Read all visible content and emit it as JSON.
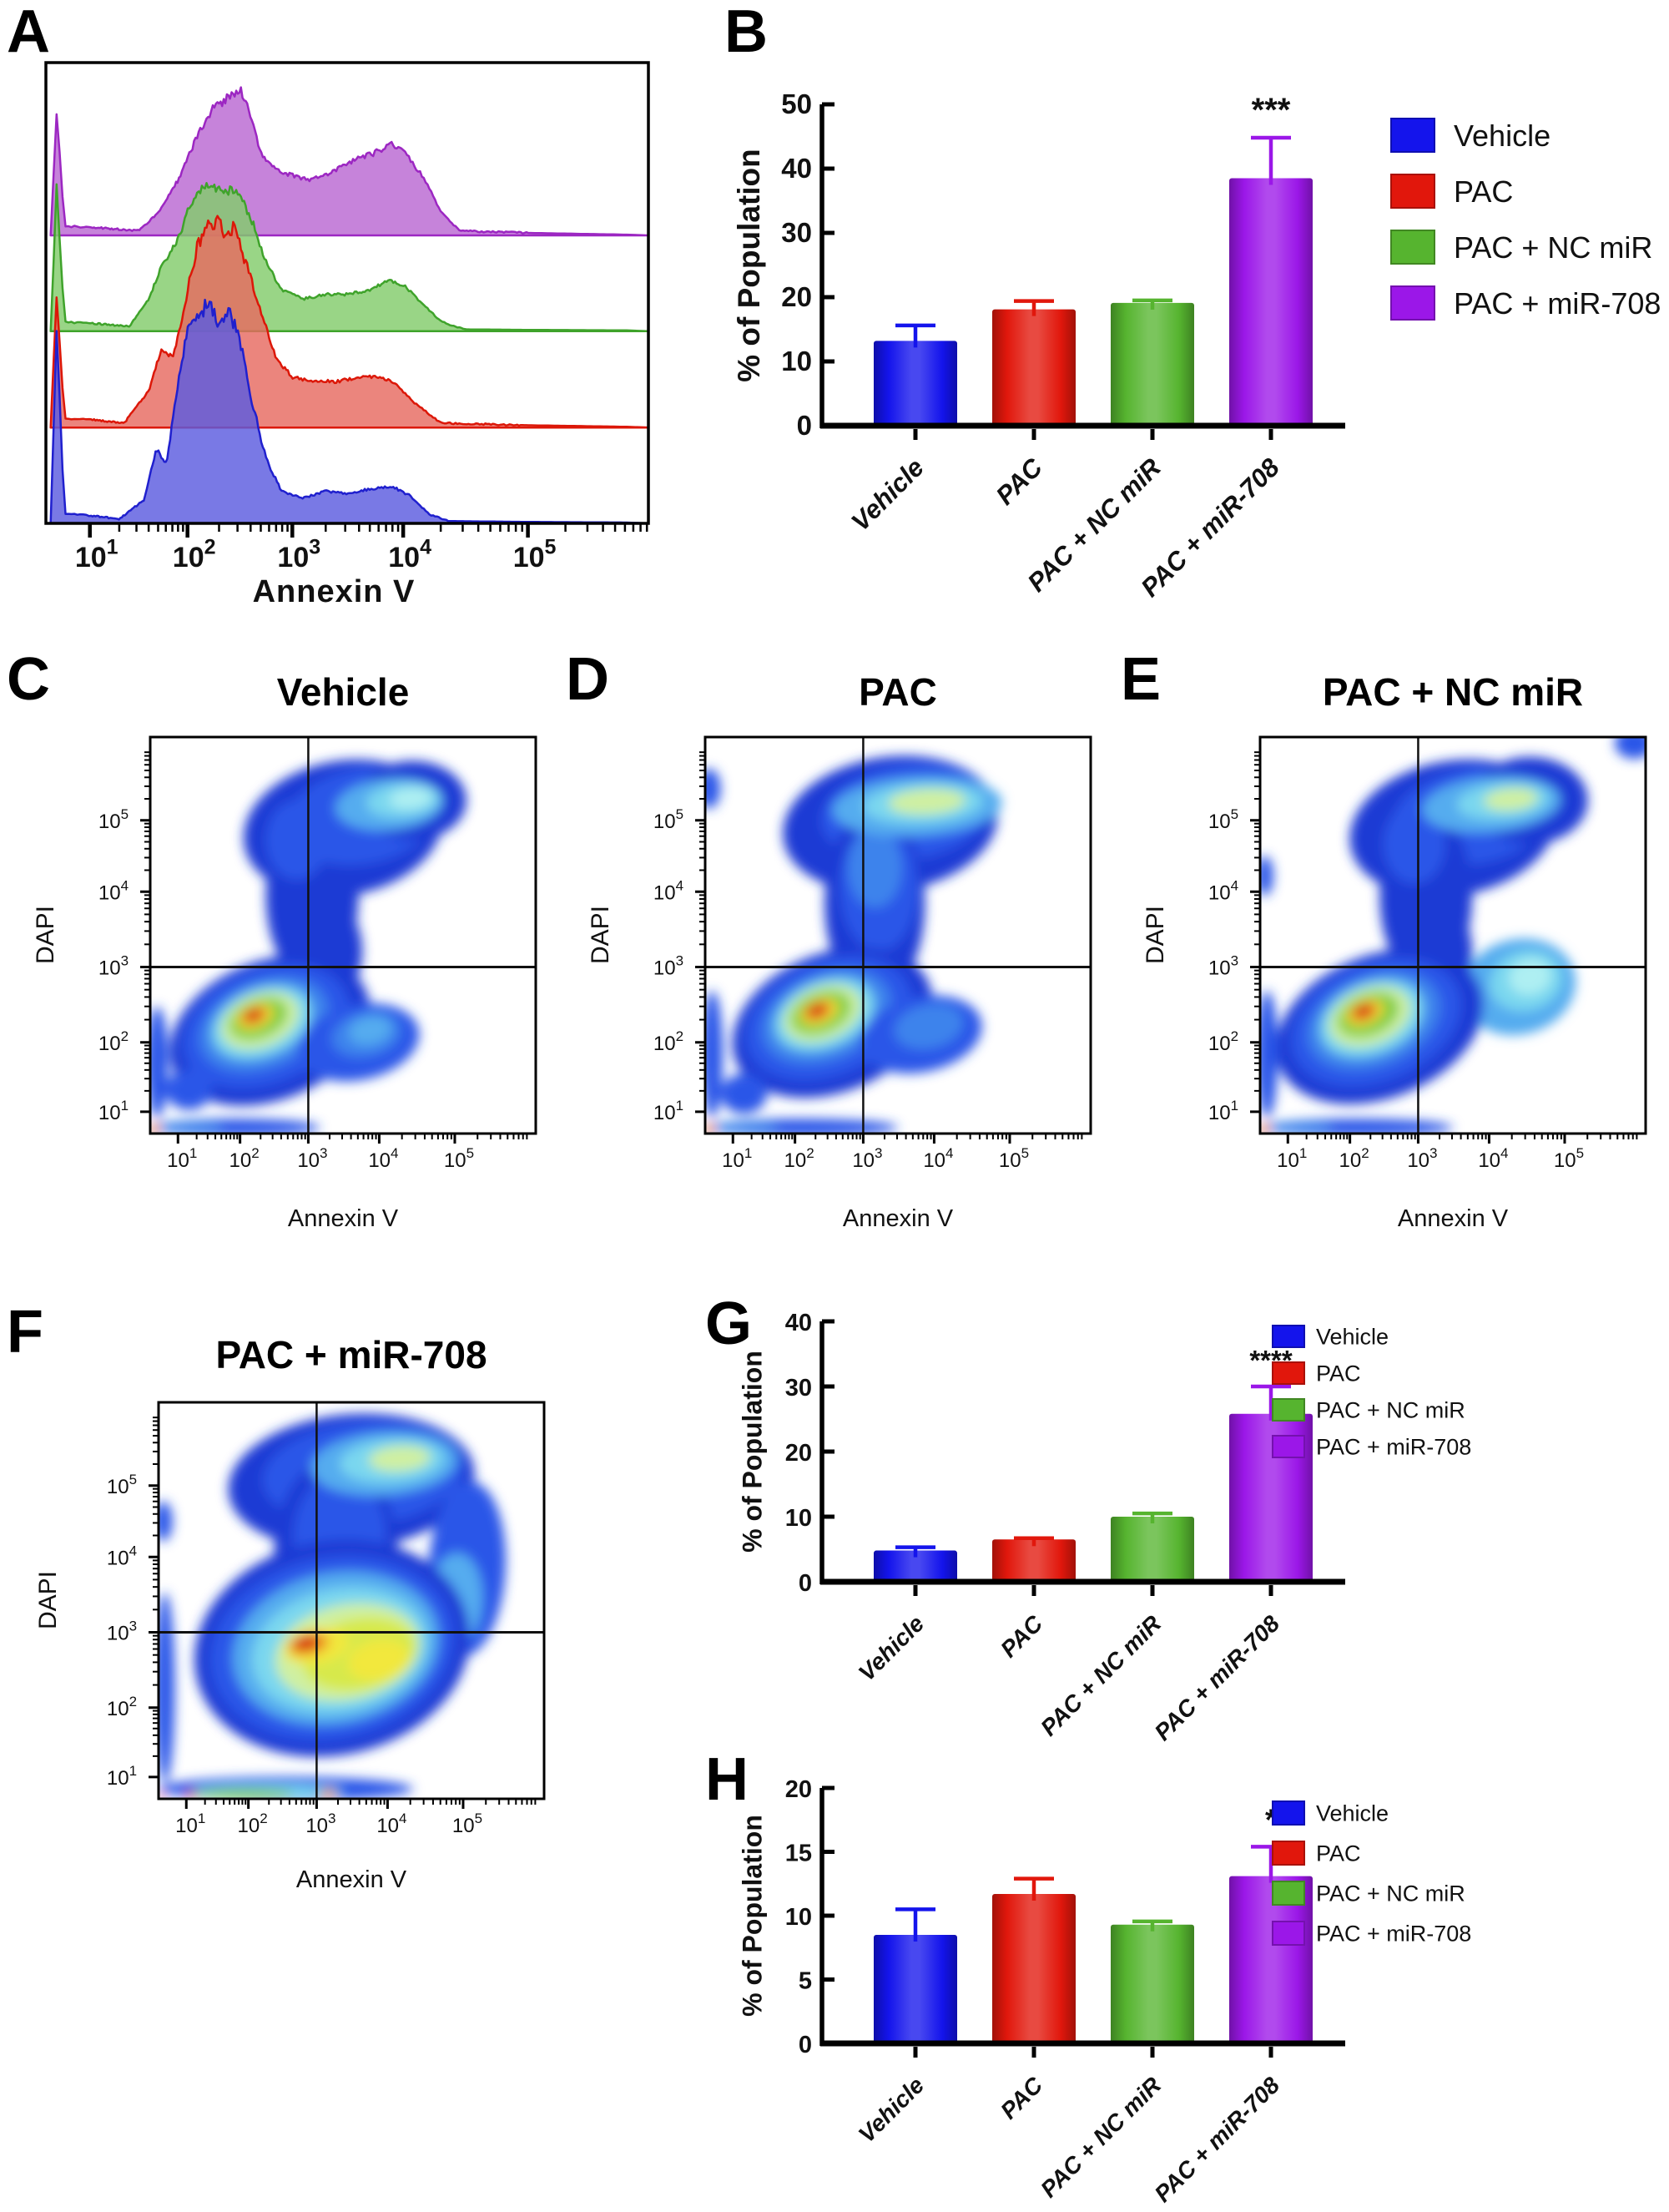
{
  "figure": {
    "legend_items": [
      {
        "label": "Vehicle",
        "color": "#1414EC"
      },
      {
        "label": "PAC",
        "color": "#E1170C"
      },
      {
        "label": "PAC + NC miR",
        "color": "#56B42F"
      },
      {
        "label": "PAC + miR-708",
        "color": "#9B17E8"
      }
    ]
  },
  "axes": {
    "log_base": "10",
    "log_exponents": [
      "1",
      "2",
      "3",
      "4",
      "5"
    ]
  },
  "panels": {
    "A": {
      "label": "A",
      "xlabel": "Annexin V"
    },
    "B": {
      "label": "B",
      "ylabel": "% of Population"
    },
    "C": {
      "label": "C",
      "title": "Vehicle",
      "xlabel": "Annexin V",
      "ylabel": "DAPI"
    },
    "D": {
      "label": "D",
      "title": "PAC",
      "xlabel": "Annexin V",
      "ylabel": "DAPI"
    },
    "E": {
      "label": "E",
      "title": "PAC + NC miR",
      "xlabel": "Annexin V",
      "ylabel": "DAPI"
    },
    "F": {
      "label": "F",
      "title": "PAC + miR-708",
      "xlabel": "Annexin V",
      "ylabel": "DAPI"
    },
    "G": {
      "label": "G",
      "ylabel": "% of Population"
    },
    "H": {
      "label": "H",
      "ylabel": "% of Population"
    }
  },
  "chart_data": [
    {
      "id": "A",
      "type": "area",
      "subtype": "flow-histogram-overlay",
      "xlabel": "Annexin V",
      "x_scale": "log10",
      "x_range": [
        10,
        100000
      ],
      "legend_position": "none",
      "grid": false,
      "note": "Four stacked (ridgeline-offset) Annexin V fluorescence histograms; heights are fractions of panel height, x in log10 units",
      "series": [
        {
          "name": "Vehicle",
          "fill": "#5B5BDF",
          "stroke": "#2020CE",
          "baseline_offset": 0.0,
          "profile": [
            [
              0.8,
              0
            ],
            [
              0.83,
              0.42
            ],
            [
              0.87,
              0.02
            ],
            [
              1.3,
              0.01
            ],
            [
              1.55,
              0.05
            ],
            [
              1.68,
              0.16
            ],
            [
              1.78,
              0.13
            ],
            [
              1.9,
              0.3
            ],
            [
              2.0,
              0.42
            ],
            [
              2.1,
              0.45
            ],
            [
              2.2,
              0.48
            ],
            [
              2.3,
              0.43
            ],
            [
              2.4,
              0.46
            ],
            [
              2.5,
              0.4
            ],
            [
              2.6,
              0.28
            ],
            [
              2.75,
              0.14
            ],
            [
              2.9,
              0.07
            ],
            [
              3.1,
              0.055
            ],
            [
              3.3,
              0.07
            ],
            [
              3.5,
              0.065
            ],
            [
              3.7,
              0.075
            ],
            [
              3.9,
              0.08
            ],
            [
              4.05,
              0.06
            ],
            [
              4.2,
              0.02
            ],
            [
              4.35,
              0.005
            ],
            [
              5.4,
              0.002
            ]
          ]
        },
        {
          "name": "PAC",
          "fill": "#E76A60",
          "stroke": "#DC1708",
          "baseline_offset": 0.208,
          "profile": [
            [
              0.8,
              0
            ],
            [
              0.83,
              0.29
            ],
            [
              0.87,
              0.02
            ],
            [
              1.35,
              0.01
            ],
            [
              1.6,
              0.08
            ],
            [
              1.73,
              0.17
            ],
            [
              1.85,
              0.15
            ],
            [
              2.0,
              0.3
            ],
            [
              2.1,
              0.4
            ],
            [
              2.2,
              0.44
            ],
            [
              2.3,
              0.45
            ],
            [
              2.37,
              0.41
            ],
            [
              2.45,
              0.44
            ],
            [
              2.55,
              0.36
            ],
            [
              2.7,
              0.25
            ],
            [
              2.85,
              0.15
            ],
            [
              3.0,
              0.11
            ],
            [
              3.2,
              0.1
            ],
            [
              3.4,
              0.1
            ],
            [
              3.6,
              0.11
            ],
            [
              3.8,
              0.11
            ],
            [
              3.95,
              0.09
            ],
            [
              4.1,
              0.05
            ],
            [
              4.3,
              0.01
            ],
            [
              5.4,
              0.002
            ]
          ]
        },
        {
          "name": "PAC + NC miR",
          "fill": "#83CC6B",
          "stroke": "#3FA32B",
          "baseline_offset": 0.417,
          "profile": [
            [
              0.8,
              0
            ],
            [
              0.83,
              0.31
            ],
            [
              0.87,
              0.02
            ],
            [
              1.4,
              0.01
            ],
            [
              1.6,
              0.07
            ],
            [
              1.73,
              0.14
            ],
            [
              1.9,
              0.2
            ],
            [
              2.0,
              0.26
            ],
            [
              2.1,
              0.3
            ],
            [
              2.2,
              0.32
            ],
            [
              2.35,
              0.3
            ],
            [
              2.45,
              0.31
            ],
            [
              2.6,
              0.25
            ],
            [
              2.75,
              0.15
            ],
            [
              2.9,
              0.09
            ],
            [
              3.1,
              0.07
            ],
            [
              3.3,
              0.08
            ],
            [
              3.5,
              0.08
            ],
            [
              3.7,
              0.09
            ],
            [
              3.85,
              0.11
            ],
            [
              4.0,
              0.1
            ],
            [
              4.15,
              0.06
            ],
            [
              4.3,
              0.02
            ],
            [
              4.5,
              0.004
            ],
            [
              5.4,
              0.002
            ]
          ]
        },
        {
          "name": "PAC + miR-708",
          "fill": "#BA68D2",
          "stroke": "#9C27C2",
          "baseline_offset": 0.625,
          "profile": [
            [
              0.8,
              0
            ],
            [
              0.83,
              0.27
            ],
            [
              0.87,
              0.02
            ],
            [
              1.5,
              0.01
            ],
            [
              1.7,
              0.05
            ],
            [
              1.9,
              0.12
            ],
            [
              2.1,
              0.22
            ],
            [
              2.25,
              0.28
            ],
            [
              2.4,
              0.3
            ],
            [
              2.5,
              0.32
            ],
            [
              2.6,
              0.26
            ],
            [
              2.7,
              0.18
            ],
            [
              2.85,
              0.14
            ],
            [
              3.0,
              0.13
            ],
            [
              3.15,
              0.12
            ],
            [
              3.3,
              0.13
            ],
            [
              3.45,
              0.15
            ],
            [
              3.6,
              0.17
            ],
            [
              3.75,
              0.18
            ],
            [
              3.9,
              0.2
            ],
            [
              4.0,
              0.18
            ],
            [
              4.15,
              0.13
            ],
            [
              4.3,
              0.05
            ],
            [
              4.45,
              0.01
            ],
            [
              5.4,
              0.002
            ]
          ]
        }
      ]
    },
    {
      "id": "B",
      "type": "bar",
      "categories": [
        "Vehicle",
        "PAC",
        "PAC + NC miR",
        "PAC + miR-708"
      ],
      "values": [
        13.2,
        18.1,
        19.1,
        38.5
      ],
      "errors_plus": [
        2.4,
        1.3,
        0.4,
        6.3
      ],
      "colors": [
        "#1414EC",
        "#E1170C",
        "#56B42F",
        "#9B17E8"
      ],
      "significance": {
        "category_index": 3,
        "text": "***"
      },
      "ylabel": "% of Population",
      "ylim": [
        0,
        50
      ],
      "yticks": [
        0,
        10,
        20,
        30,
        40,
        50
      ],
      "legend_position": "right",
      "grid": false
    },
    {
      "id": "C",
      "type": "heatmap",
      "subtype": "flow-density-contour",
      "title": "Vehicle",
      "xlabel": "Annexin V",
      "ylabel": "DAPI",
      "x_scale": "log10",
      "y_scale": "log10",
      "x_range": [
        10,
        100000
      ],
      "y_range": [
        10,
        100000
      ],
      "quadrant_gates": {
        "x": 1000,
        "y": 1000
      },
      "populations": [
        {
          "name": "main live population",
          "x": 150,
          "y": 200,
          "density": "maximum (red core)"
        },
        {
          "name": "upper necrotic arc",
          "x": 5000,
          "y": 35000,
          "density": "low-mid (pale cyan band)"
        }
      ]
    },
    {
      "id": "D",
      "type": "heatmap",
      "subtype": "flow-density-contour",
      "title": "PAC",
      "xlabel": "Annexin V",
      "ylabel": "DAPI",
      "x_scale": "log10",
      "y_scale": "log10",
      "x_range": [
        10,
        100000
      ],
      "y_range": [
        10,
        100000
      ],
      "quadrant_gates": {
        "x": 1000,
        "y": 1000
      },
      "populations": [
        {
          "name": "main live population",
          "x": 250,
          "y": 250,
          "density": "maximum (red core)"
        },
        {
          "name": "upper band",
          "x": 3000,
          "y": 30000,
          "density": "mid (green-cyan band)"
        }
      ]
    },
    {
      "id": "E",
      "type": "heatmap",
      "subtype": "flow-density-contour",
      "title": "PAC + NC miR",
      "xlabel": "Annexin V",
      "ylabel": "DAPI",
      "x_scale": "log10",
      "y_scale": "log10",
      "x_range": [
        10,
        100000
      ],
      "y_range": [
        10,
        100000
      ],
      "quadrant_gates": {
        "x": 1000,
        "y": 1000
      },
      "populations": [
        {
          "name": "main live population",
          "x": 200,
          "y": 230,
          "density": "maximum (red core)"
        },
        {
          "name": "upper band",
          "x": 6000,
          "y": 35000,
          "density": "mid (green band)"
        },
        {
          "name": "right apoptotic cloud",
          "x": 10000,
          "y": 300,
          "density": "low-mid (cyan)"
        }
      ]
    },
    {
      "id": "F",
      "type": "heatmap",
      "subtype": "flow-density-contour",
      "title": "PAC + miR-708",
      "xlabel": "Annexin V",
      "ylabel": "DAPI",
      "x_scale": "log10",
      "y_scale": "log10",
      "x_range": [
        10,
        100000
      ],
      "y_range": [
        10,
        100000
      ],
      "quadrant_gates": {
        "x": 1000,
        "y": 1000
      },
      "populations": [
        {
          "name": "main population",
          "x": 400,
          "y": 300,
          "density": "maximum (red core), broad green spread toward Annexin V+"
        },
        {
          "name": "upper band",
          "x": 5000,
          "y": 35000,
          "density": "mid (green-cyan band)"
        },
        {
          "name": "bottom debris band",
          "x": 300,
          "y": 10,
          "density": "mid (green/red streak)"
        }
      ]
    },
    {
      "id": "G",
      "type": "bar",
      "categories": [
        "Vehicle",
        "PAC",
        "PAC + NC miR",
        "PAC + miR-708"
      ],
      "values": [
        4.8,
        6.5,
        10.0,
        25.8
      ],
      "errors_plus": [
        0.5,
        0.2,
        0.5,
        4.2
      ],
      "colors": [
        "#1414EC",
        "#E1170C",
        "#56B42F",
        "#9B17E8"
      ],
      "significance": {
        "category_index": 3,
        "text": "****"
      },
      "ylabel": "% of Population",
      "ylim": [
        0,
        40
      ],
      "yticks": [
        0,
        10,
        20,
        30,
        40
      ],
      "legend_position": "right",
      "grid": false
    },
    {
      "id": "H",
      "type": "bar",
      "categories": [
        "Vehicle",
        "PAC",
        "PAC + NC miR",
        "PAC + miR-708"
      ],
      "values": [
        8.5,
        11.7,
        9.3,
        13.1
      ],
      "errors_plus": [
        2.0,
        1.2,
        0.25,
        2.3
      ],
      "colors": [
        "#1414EC",
        "#E1170C",
        "#56B42F",
        "#9B17E8"
      ],
      "significance": {
        "category_index": 3,
        "text": "*"
      },
      "ylabel": "% of Population",
      "ylim": [
        0,
        20
      ],
      "yticks": [
        0,
        5,
        10,
        15,
        20
      ],
      "legend_position": "right",
      "grid": false
    }
  ]
}
